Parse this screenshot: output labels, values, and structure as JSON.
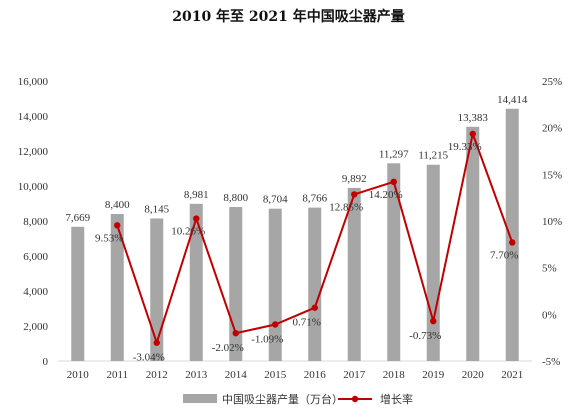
{
  "chart_data": {
    "type": "bar",
    "title": "2010 年至 2021 年中国吸尘器产量",
    "categories": [
      "2010",
      "2011",
      "2012",
      "2013",
      "2014",
      "2015",
      "2016",
      "2017",
      "2018",
      "2019",
      "2020",
      "2021"
    ],
    "series": [
      {
        "name": "中国吸尘器产量（万台）",
        "type": "bar",
        "axis": "left",
        "color": "#a6a6a6",
        "values": [
          7669,
          8400,
          8145,
          8981,
          8800,
          8704,
          8766,
          9892,
          11297,
          11215,
          13383,
          14414
        ],
        "labels": [
          "7,669",
          "8,400",
          "8,145",
          "8,981",
          "8,800",
          "8,704",
          "8,766",
          "9,892",
          "11,297",
          "11,215",
          "13,383",
          "14,414"
        ]
      },
      {
        "name": "增长率",
        "type": "line",
        "axis": "right",
        "color": "#c00000",
        "values": [
          null,
          9.53,
          -3.04,
          10.26,
          -2.02,
          -1.09,
          0.71,
          12.85,
          14.2,
          -0.73,
          19.33,
          7.7
        ],
        "labels": [
          "",
          "9.53%",
          "-3.04%",
          "10.26%",
          "-2.02%",
          "-1.09%",
          "0.71%",
          "12.85%",
          "14.20%",
          "-0.73%",
          "19.33%",
          "7.70%"
        ]
      }
    ],
    "ylim_left": [
      0,
      16000
    ],
    "yticks_left": [
      "0",
      "2,000",
      "4,000",
      "6,000",
      "8,000",
      "10,000",
      "12,000",
      "14,000",
      "16,000"
    ],
    "ylim_right": [
      -5,
      25
    ],
    "yticks_right": [
      "-5%",
      "0%",
      "5%",
      "10%",
      "15%",
      "20%",
      "25%"
    ],
    "grid": false,
    "legend": "bottom",
    "xlabel": "",
    "ylabel": ""
  }
}
